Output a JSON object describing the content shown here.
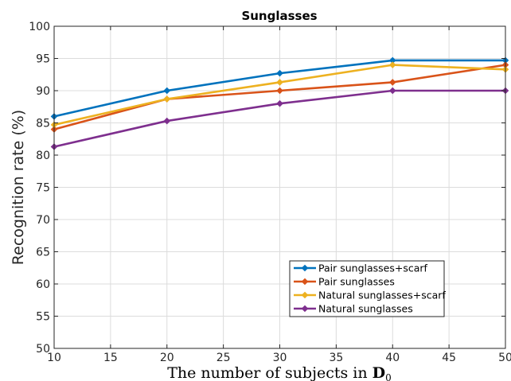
{
  "chart_data": {
    "type": "line",
    "title": "Sunglasses",
    "xlabel": "The number of subjects in",
    "xlabel_symbol": "D",
    "xlabel_subscript": "0",
    "ylabel": "Recognition rate (%)",
    "x": [
      10,
      20,
      30,
      40,
      50
    ],
    "xlim": [
      10,
      50
    ],
    "ylim": [
      50,
      100
    ],
    "xticks": [
      10,
      15,
      20,
      25,
      30,
      35,
      40,
      45,
      50
    ],
    "yticks": [
      50,
      55,
      60,
      65,
      70,
      75,
      80,
      85,
      90,
      95,
      100
    ],
    "grid": true,
    "legend_position": "bottom-right",
    "series": [
      {
        "name": "Pair sunglasses+scarf",
        "color": "#0072BD",
        "values": [
          86.0,
          90.0,
          92.7,
          94.7,
          94.7
        ]
      },
      {
        "name": "Pair sunglasses",
        "color": "#D95319",
        "values": [
          84.0,
          88.7,
          90.0,
          91.3,
          94.0
        ]
      },
      {
        "name": "Natural sunglasses+scarf",
        "color": "#EDB120",
        "values": [
          84.7,
          88.7,
          91.3,
          94.0,
          93.3
        ]
      },
      {
        "name": "Natural sunglasses",
        "color": "#7E2F8E",
        "values": [
          81.3,
          85.3,
          88.0,
          90.0,
          90.0
        ]
      }
    ]
  }
}
